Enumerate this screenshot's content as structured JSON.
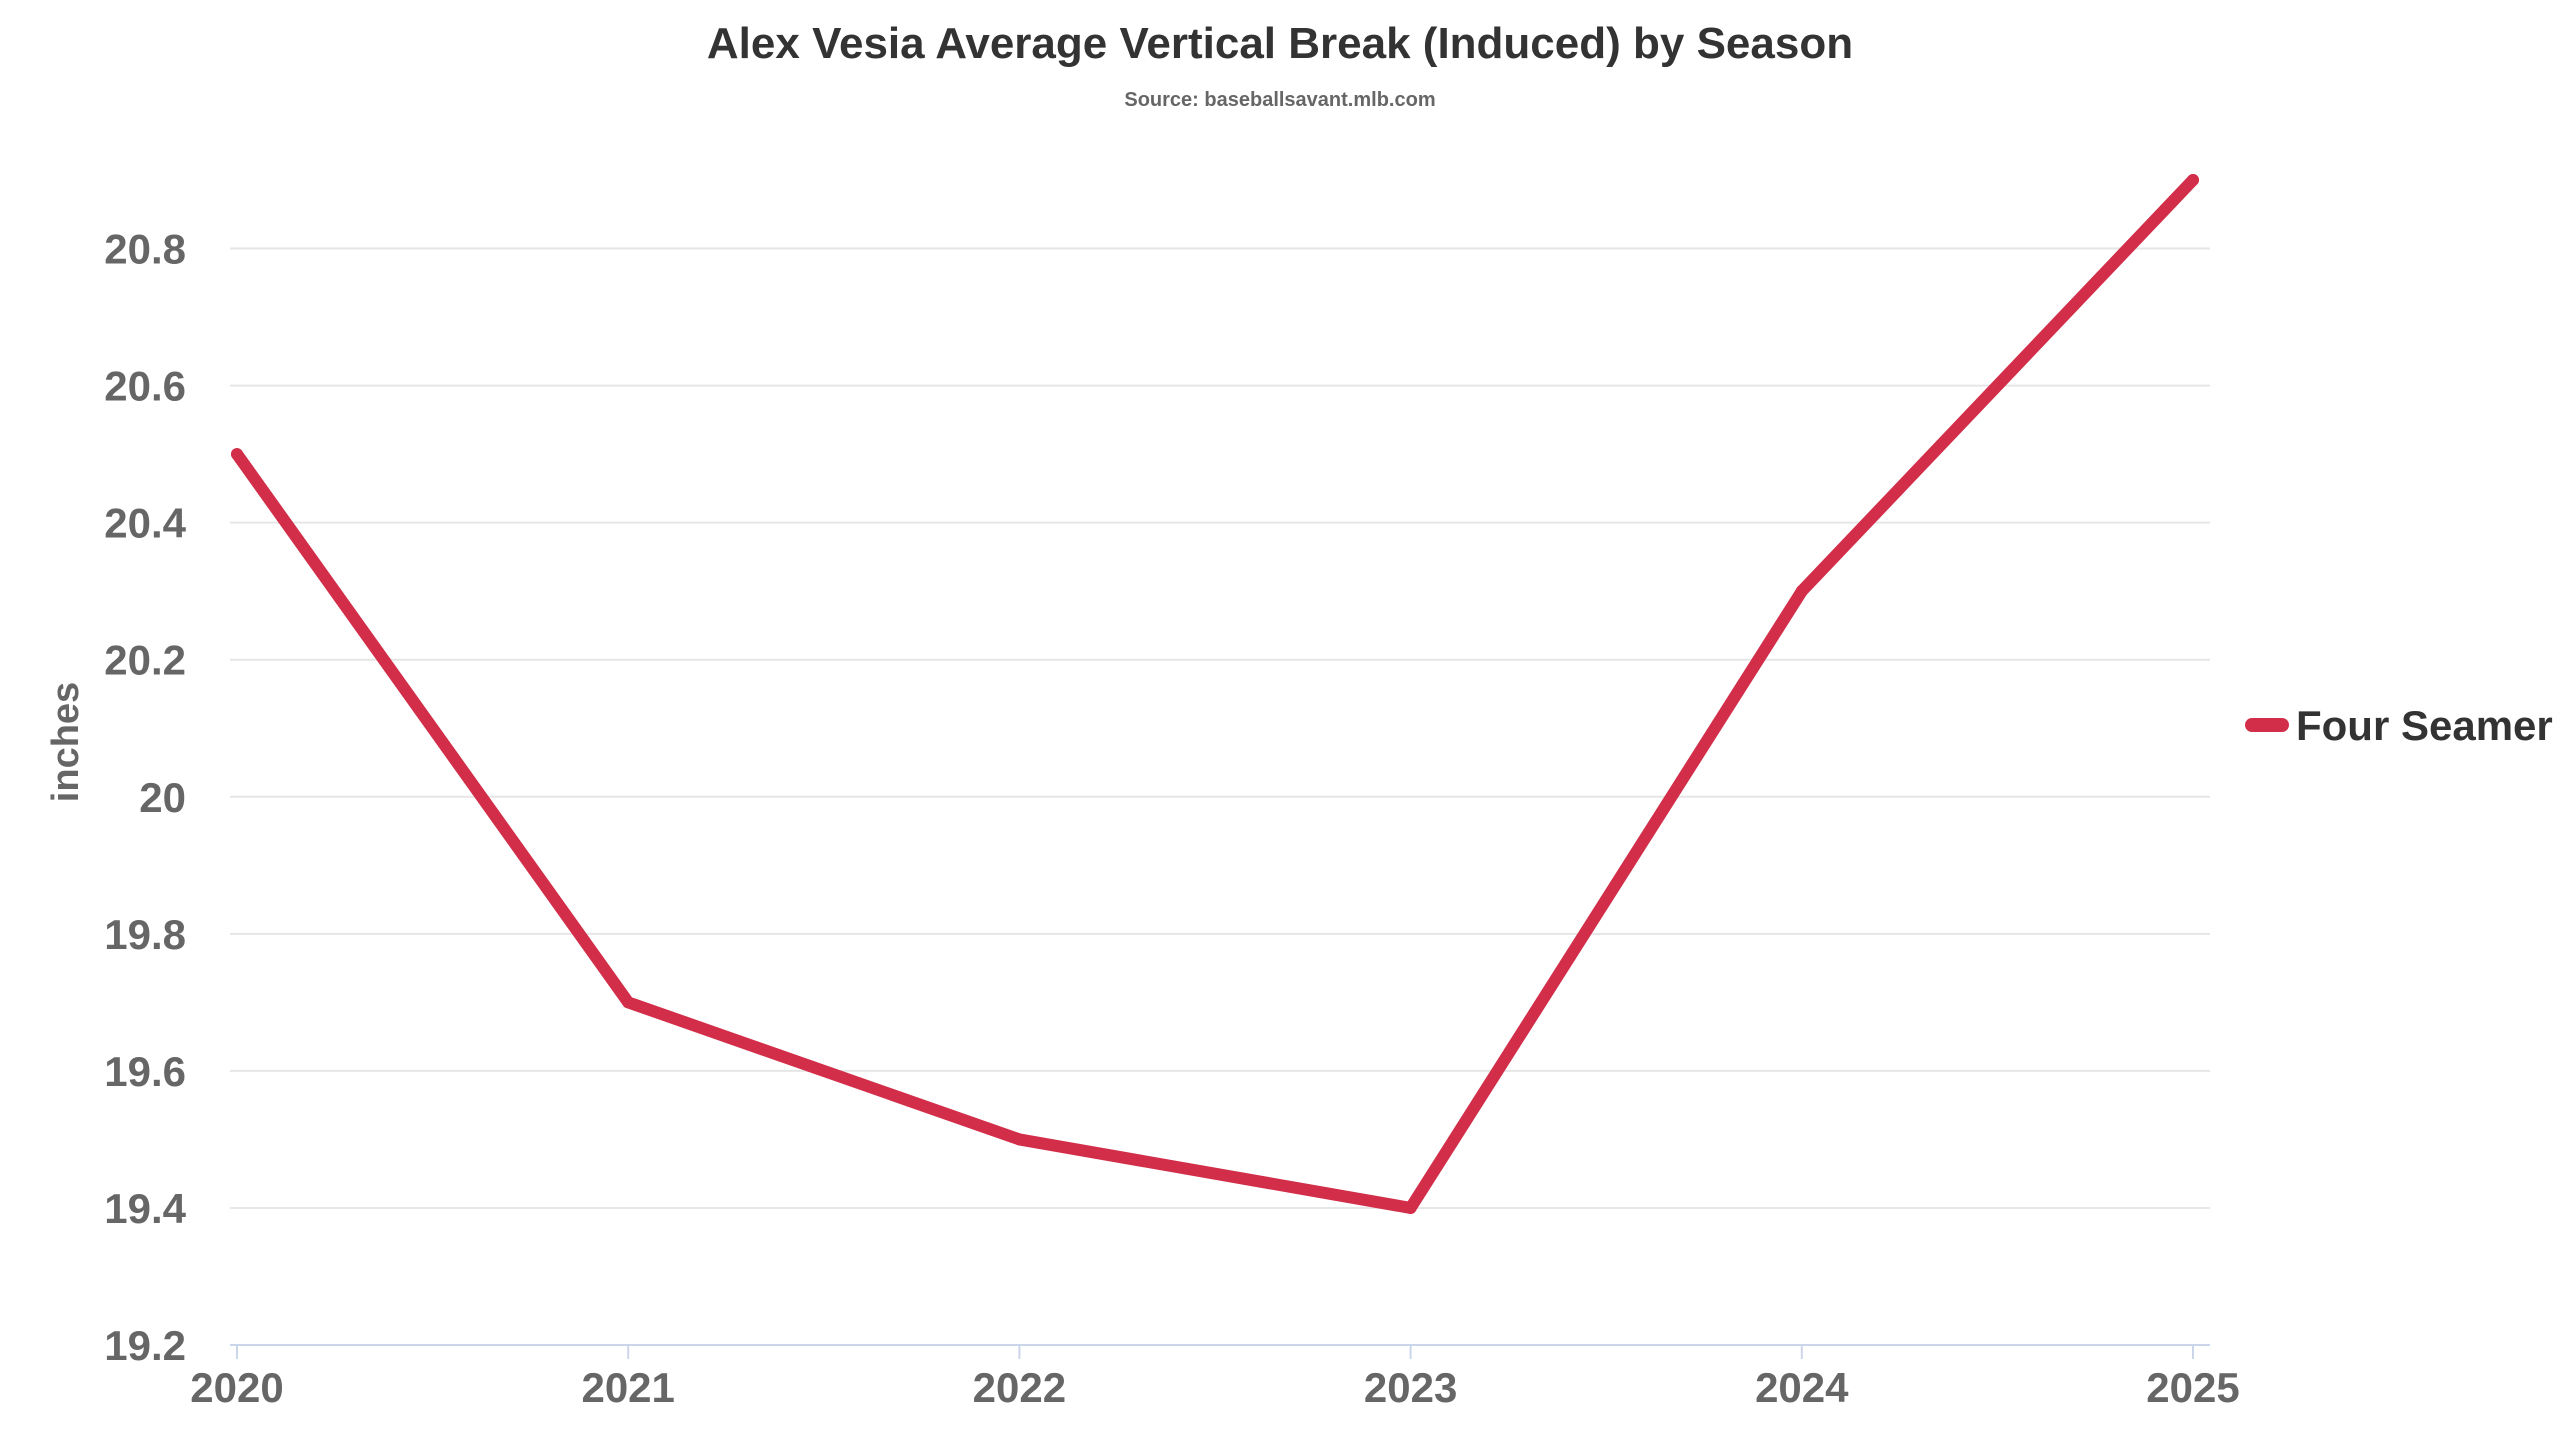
{
  "chart_data": {
    "type": "line",
    "title": "Alex Vesia Average Vertical Break (Induced) by Season",
    "subtitle": "Source: baseballsavant.mlb.com",
    "xlabel": "",
    "ylabel": "inches",
    "categories": [
      "2020",
      "2021",
      "2022",
      "2023",
      "2024",
      "2025"
    ],
    "y_ticks": [
      19.2,
      19.4,
      19.6,
      19.8,
      20,
      20.2,
      20.4,
      20.6,
      20.8
    ],
    "y_tick_labels": [
      "19.2",
      "19.4",
      "19.6",
      "19.8",
      "20",
      "20.2",
      "20.4",
      "20.6",
      "20.8"
    ],
    "ylim": [
      19.2,
      20.9
    ],
    "grid": true,
    "legend_position": "right",
    "series": [
      {
        "name": "Four Seamer",
        "color": "#d22d49",
        "values": [
          20.5,
          19.7,
          19.5,
          19.4,
          20.3,
          20.9
        ]
      }
    ]
  }
}
